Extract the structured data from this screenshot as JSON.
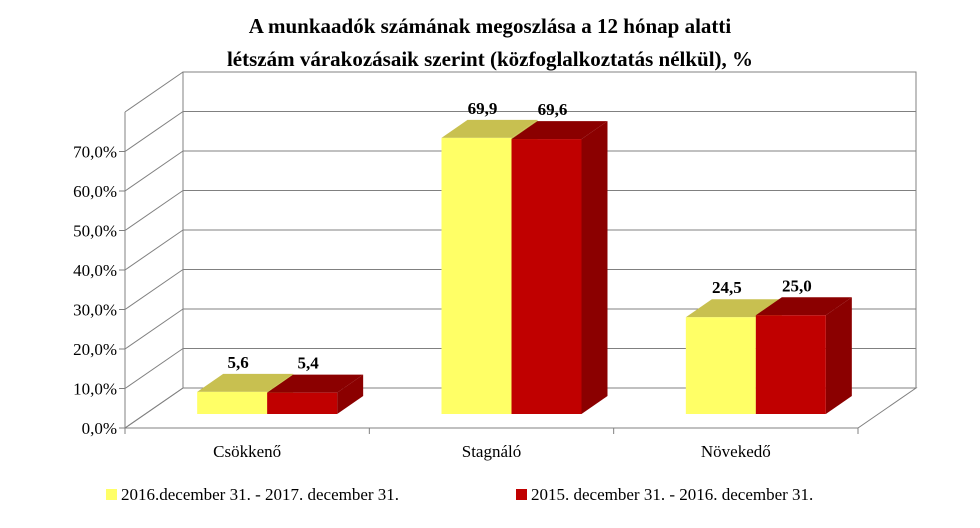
{
  "chart_data": {
    "type": "bar",
    "title_lines": [
      "A munkaadók számának megoszlása a 12 hónap alatti",
      "létszám várakozásaik szerint (közfoglalkoztatás nélkül), %"
    ],
    "categories": [
      "Csökkenő",
      "Stagnáló",
      "Növekedő"
    ],
    "series": [
      {
        "name": "2016.december 31. - 2017. december 31.",
        "values": [
          5.6,
          69.9,
          24.5
        ],
        "labels": [
          "5,6",
          "69,9",
          "24,5"
        ],
        "color": "#ffff66",
        "top_color": "#c8c050"
      },
      {
        "name": "2015. december 31. - 2016. december 31.",
        "values": [
          5.4,
          69.6,
          25.0
        ],
        "labels": [
          "5,4",
          "69,6",
          "25,0"
        ],
        "color": "#c00000",
        "top_color": "#8b0000"
      }
    ],
    "yticks": [
      {
        "value": 0,
        "label": "0,0%"
      },
      {
        "value": 10,
        "label": "10,0%"
      },
      {
        "value": 20,
        "label": "20,0%"
      },
      {
        "value": 30,
        "label": "30,0%"
      },
      {
        "value": 40,
        "label": "40,0%"
      },
      {
        "value": 50,
        "label": "50,0%"
      },
      {
        "value": 60,
        "label": "60,0%"
      },
      {
        "value": 70,
        "label": "70,0%"
      }
    ],
    "ylim": [
      0,
      80
    ],
    "grid": true,
    "legend_position": "bottom",
    "three_d": true
  }
}
